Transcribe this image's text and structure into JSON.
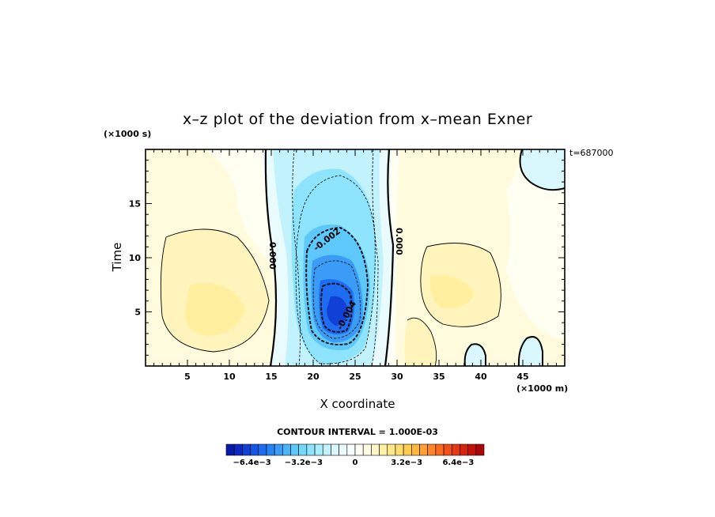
{
  "chart_data": {
    "type": "heatmap",
    "title": "x–z plot of the deviation from x–mean Exner",
    "xlabel": "X coordinate",
    "ylabel": "Time",
    "x_unit_label": "(×1000 m)",
    "y_unit_label": "(×1000 s)",
    "time_label": "t=687000",
    "xlim": [
      0,
      50
    ],
    "ylim": [
      0,
      20
    ],
    "x_ticks": [
      "5",
      "10",
      "15",
      "20",
      "25",
      "30",
      "35",
      "40",
      "45"
    ],
    "y_ticks": [
      "5",
      "10",
      "15"
    ],
    "contour_interval_text": "CONTOUR INTERVAL = 1.000E-03",
    "contour_labels": [
      "0.000",
      "-0.002",
      "0.000",
      "-0.004"
    ],
    "colorbar": {
      "min": -0.008,
      "max": 0.008,
      "tick_labels": [
        "−6.4e−3",
        "−3.2e−3",
        "0",
        "3.2e−3",
        "6.4e−3"
      ],
      "colors": [
        "#0a1aa8",
        "#0d2ac0",
        "#1040d6",
        "#1656e6",
        "#1e6cf0",
        "#2884f4",
        "#3a9cf6",
        "#4cb4f8",
        "#5ec8fa",
        "#74d8fb",
        "#8ee4fc",
        "#a8edfc",
        "#c2f3fd",
        "#d8f8fd",
        "#eafbfe",
        "#f8fdfe",
        "#fffff6",
        "#fffbe2",
        "#fff6c8",
        "#fff0a8",
        "#ffe88a",
        "#ffdc6c",
        "#ffcc52",
        "#ffb840",
        "#ffa032",
        "#ff8628",
        "#fb6a20",
        "#f2501a",
        "#e63814",
        "#d8240e",
        "#c4140a",
        "#a80808"
      ]
    },
    "features": [
      {
        "kind": "min",
        "x": 24,
        "t": 5,
        "value": -0.0065
      },
      {
        "kind": "max",
        "x": 8,
        "t": 5,
        "value": 0.0022
      },
      {
        "kind": "max",
        "x": 36,
        "t": 8,
        "value": 0.0022
      }
    ]
  }
}
